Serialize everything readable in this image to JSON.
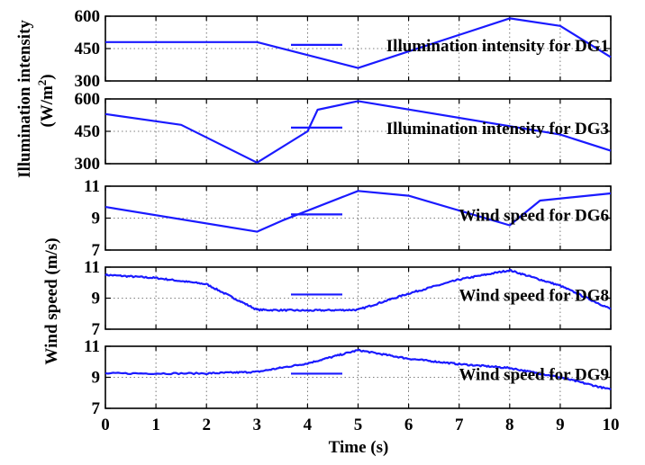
{
  "figure": {
    "xlabel": "Time (s)",
    "left_label_top": "Illumination intensity",
    "left_label_top_unit": "(W/m",
    "left_label_top_sup": "2",
    "left_label_top_unit_end": ")",
    "left_label_bottom": "Wind speed (m/s)"
  },
  "chart_data": [
    {
      "type": "line",
      "series": [
        {
          "name": "Illumination intensity for DG1",
          "x": [
            0,
            3,
            5,
            8,
            9,
            10
          ],
          "y": [
            480,
            480,
            360,
            590,
            555,
            410
          ],
          "color": "#1a1aff"
        }
      ],
      "xlim": [
        0,
        10
      ],
      "ylim": [
        300,
        600
      ],
      "xticks": [
        0,
        1,
        2,
        3,
        4,
        5,
        6,
        7,
        8,
        9,
        10
      ],
      "yticks": [
        300,
        450,
        600
      ],
      "show_x_tick_labels": false,
      "grid": true,
      "legend": "top-right"
    },
    {
      "type": "line",
      "series": [
        {
          "name": "Illumination intensity for DG3",
          "x": [
            0,
            1.5,
            3,
            4,
            4.2,
            5,
            9,
            10
          ],
          "y": [
            530,
            480,
            305,
            450,
            550,
            590,
            435,
            360
          ],
          "color": "#1a1aff"
        }
      ],
      "xlim": [
        0,
        10
      ],
      "ylim": [
        300,
        600
      ],
      "xticks": [
        0,
        1,
        2,
        3,
        4,
        5,
        6,
        7,
        8,
        9,
        10
      ],
      "yticks": [
        300,
        450,
        600
      ],
      "show_x_tick_labels": false,
      "grid": true,
      "legend": "top-right"
    },
    {
      "type": "line",
      "series": [
        {
          "name": "Wind speed for DG6",
          "x": [
            0,
            3,
            3.5,
            5,
            6,
            8,
            8.6,
            10
          ],
          "y": [
            9.7,
            8.15,
            8.85,
            10.7,
            10.4,
            8.55,
            10.1,
            10.55
          ],
          "color": "#1a1aff"
        }
      ],
      "xlim": [
        0,
        10
      ],
      "ylim": [
        7,
        11
      ],
      "xticks": [
        0,
        1,
        2,
        3,
        4,
        5,
        6,
        7,
        8,
        9,
        10
      ],
      "yticks": [
        7,
        9,
        11
      ],
      "show_x_tick_labels": false,
      "grid": true,
      "legend": "top-right"
    },
    {
      "type": "line",
      "noisy": true,
      "series": [
        {
          "name": "Wind speed for DG8",
          "x": [
            0,
            1,
            2,
            3,
            4,
            5,
            6,
            7,
            8,
            9,
            10
          ],
          "y": [
            10.5,
            10.3,
            9.9,
            8.25,
            8.2,
            8.25,
            9.3,
            10.2,
            10.8,
            9.8,
            8.3
          ],
          "color": "#1a1aff"
        }
      ],
      "xlim": [
        0,
        10
      ],
      "ylim": [
        7,
        11
      ],
      "xticks": [
        0,
        1,
        2,
        3,
        4,
        5,
        6,
        7,
        8,
        9,
        10
      ],
      "yticks": [
        7,
        9,
        11
      ],
      "show_x_tick_labels": false,
      "grid": true,
      "legend": "top-right"
    },
    {
      "type": "line",
      "noisy": true,
      "series": [
        {
          "name": "Wind speed for DG9",
          "x": [
            0,
            2,
            3,
            4,
            5,
            6,
            7,
            8,
            9,
            10
          ],
          "y": [
            9.25,
            9.25,
            9.35,
            9.9,
            10.75,
            10.2,
            9.85,
            9.6,
            9.0,
            8.2
          ],
          "color": "#1a1aff"
        }
      ],
      "xlim": [
        0,
        10
      ],
      "ylim": [
        7,
        11
      ],
      "xticks": [
        0,
        1,
        2,
        3,
        4,
        5,
        6,
        7,
        8,
        9,
        10
      ],
      "yticks": [
        7,
        9,
        11
      ],
      "show_x_tick_labels": true,
      "grid": true,
      "legend": "top-right"
    }
  ]
}
